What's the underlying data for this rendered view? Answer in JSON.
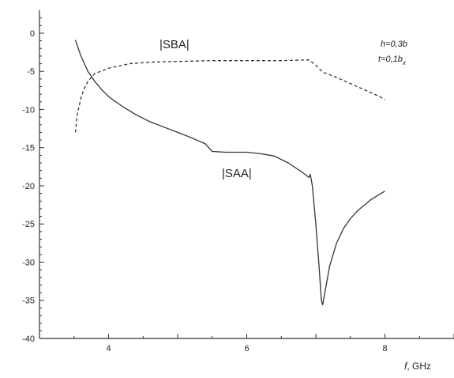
{
  "chart_data": {
    "type": "line",
    "xlim": [
      3,
      9
    ],
    "ylim": [
      -40,
      3
    ],
    "x_ticks": [
      4,
      6,
      8
    ],
    "y_ticks": [
      0,
      -5,
      -10,
      -15,
      -20,
      -25,
      -30,
      -35,
      -40
    ],
    "x_axis_label": {
      "prefix": "f",
      "unit": ", GHz"
    },
    "grid": false,
    "series": [
      {
        "name": "|SAA|",
        "style": "solid",
        "color": "#333333",
        "points": [
          [
            3.52,
            -0.9
          ],
          [
            3.6,
            -3.0
          ],
          [
            3.7,
            -5.0
          ],
          [
            3.8,
            -6.3
          ],
          [
            3.9,
            -7.4
          ],
          [
            4.0,
            -8.3
          ],
          [
            4.2,
            -9.6
          ],
          [
            4.4,
            -10.7
          ],
          [
            4.6,
            -11.6
          ],
          [
            4.8,
            -12.3
          ],
          [
            5.0,
            -13.0
          ],
          [
            5.2,
            -13.7
          ],
          [
            5.4,
            -14.5
          ],
          [
            5.45,
            -15.0
          ],
          [
            5.5,
            -15.5
          ],
          [
            5.7,
            -15.6
          ],
          [
            6.0,
            -15.6
          ],
          [
            6.2,
            -15.8
          ],
          [
            6.4,
            -16.1
          ],
          [
            6.6,
            -17.0
          ],
          [
            6.8,
            -18.2
          ],
          [
            6.9,
            -18.9
          ],
          [
            6.92,
            -18.5
          ],
          [
            6.95,
            -20.0
          ],
          [
            7.0,
            -25.0
          ],
          [
            7.05,
            -31.0
          ],
          [
            7.08,
            -35.0
          ],
          [
            7.1,
            -35.6
          ],
          [
            7.13,
            -34.0
          ],
          [
            7.2,
            -30.5
          ],
          [
            7.3,
            -27.5
          ],
          [
            7.4,
            -25.6
          ],
          [
            7.5,
            -24.3
          ],
          [
            7.6,
            -23.3
          ],
          [
            7.8,
            -21.8
          ],
          [
            8.0,
            -20.7
          ]
        ]
      },
      {
        "name": "|SBA|",
        "style": "dashed",
        "color": "#333333",
        "points": [
          [
            3.52,
            -13.0
          ],
          [
            3.55,
            -10.5
          ],
          [
            3.6,
            -8.5
          ],
          [
            3.65,
            -7.2
          ],
          [
            3.7,
            -6.3
          ],
          [
            3.8,
            -5.3
          ],
          [
            4.0,
            -4.6
          ],
          [
            4.3,
            -4.0
          ],
          [
            4.6,
            -3.8
          ],
          [
            5.0,
            -3.7
          ],
          [
            5.5,
            -3.6
          ],
          [
            6.0,
            -3.6
          ],
          [
            6.5,
            -3.6
          ],
          [
            6.9,
            -3.5
          ],
          [
            7.0,
            -4.2
          ],
          [
            7.1,
            -5.1
          ],
          [
            7.3,
            -5.8
          ],
          [
            7.5,
            -6.6
          ],
          [
            7.7,
            -7.4
          ],
          [
            7.9,
            -8.2
          ],
          [
            8.0,
            -8.7
          ]
        ]
      }
    ],
    "annotations": {
      "h": "h=0,3b",
      "t_main": "t=0,1b",
      "t_sub": "x"
    }
  }
}
